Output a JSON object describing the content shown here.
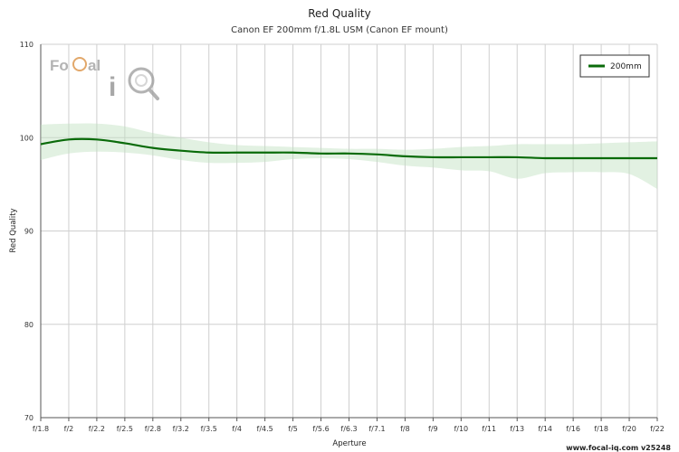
{
  "chart_data": {
    "type": "line",
    "title": "Red Quality",
    "subtitle": "Canon EF 200mm f/1.8L USM (Canon EF mount)",
    "xlabel": "Aperture",
    "ylabel": "Red Quality",
    "ylim": [
      70,
      110
    ],
    "yticks": [
      "70",
      "80",
      "90",
      "100",
      "110"
    ],
    "categories": [
      "f/1.8",
      "f/2",
      "f/2.2",
      "f/2.5",
      "f/2.8",
      "f/3.2",
      "f/3.5",
      "f/4",
      "f/4.5",
      "f/5",
      "f/5.6",
      "f/6.3",
      "f/7.1",
      "f/8",
      "f/9",
      "f/10",
      "f/11",
      "f/13",
      "f/14",
      "f/16",
      "f/18",
      "f/20",
      "f/22"
    ],
    "series": [
      {
        "name": "200mm",
        "color": "#0a6b0a",
        "values": [
          99.3,
          99.8,
          99.8,
          99.4,
          98.9,
          98.6,
          98.4,
          98.4,
          98.4,
          98.4,
          98.3,
          98.3,
          98.2,
          98.0,
          97.9,
          97.9,
          97.9,
          97.9,
          97.8,
          97.8,
          97.8,
          97.8,
          97.8
        ],
        "band_upper": [
          101.4,
          101.5,
          101.5,
          101.2,
          100.5,
          100.0,
          99.5,
          99.2,
          99.1,
          99.0,
          98.9,
          98.8,
          98.8,
          98.7,
          98.8,
          99.0,
          99.1,
          99.3,
          99.3,
          99.3,
          99.4,
          99.5,
          99.6
        ],
        "band_lower": [
          97.6,
          98.3,
          98.5,
          98.4,
          98.1,
          97.6,
          97.3,
          97.3,
          97.4,
          97.7,
          97.8,
          97.7,
          97.4,
          97.0,
          96.8,
          96.5,
          96.4,
          95.6,
          96.2,
          96.3,
          96.3,
          96.1,
          94.5
        ]
      }
    ],
    "grid": true,
    "legend_position": "top-right"
  },
  "logo": {
    "text_focal": "FoCal",
    "text_iq": "iQ"
  },
  "credit": "www.focal-iq.com  v25248"
}
